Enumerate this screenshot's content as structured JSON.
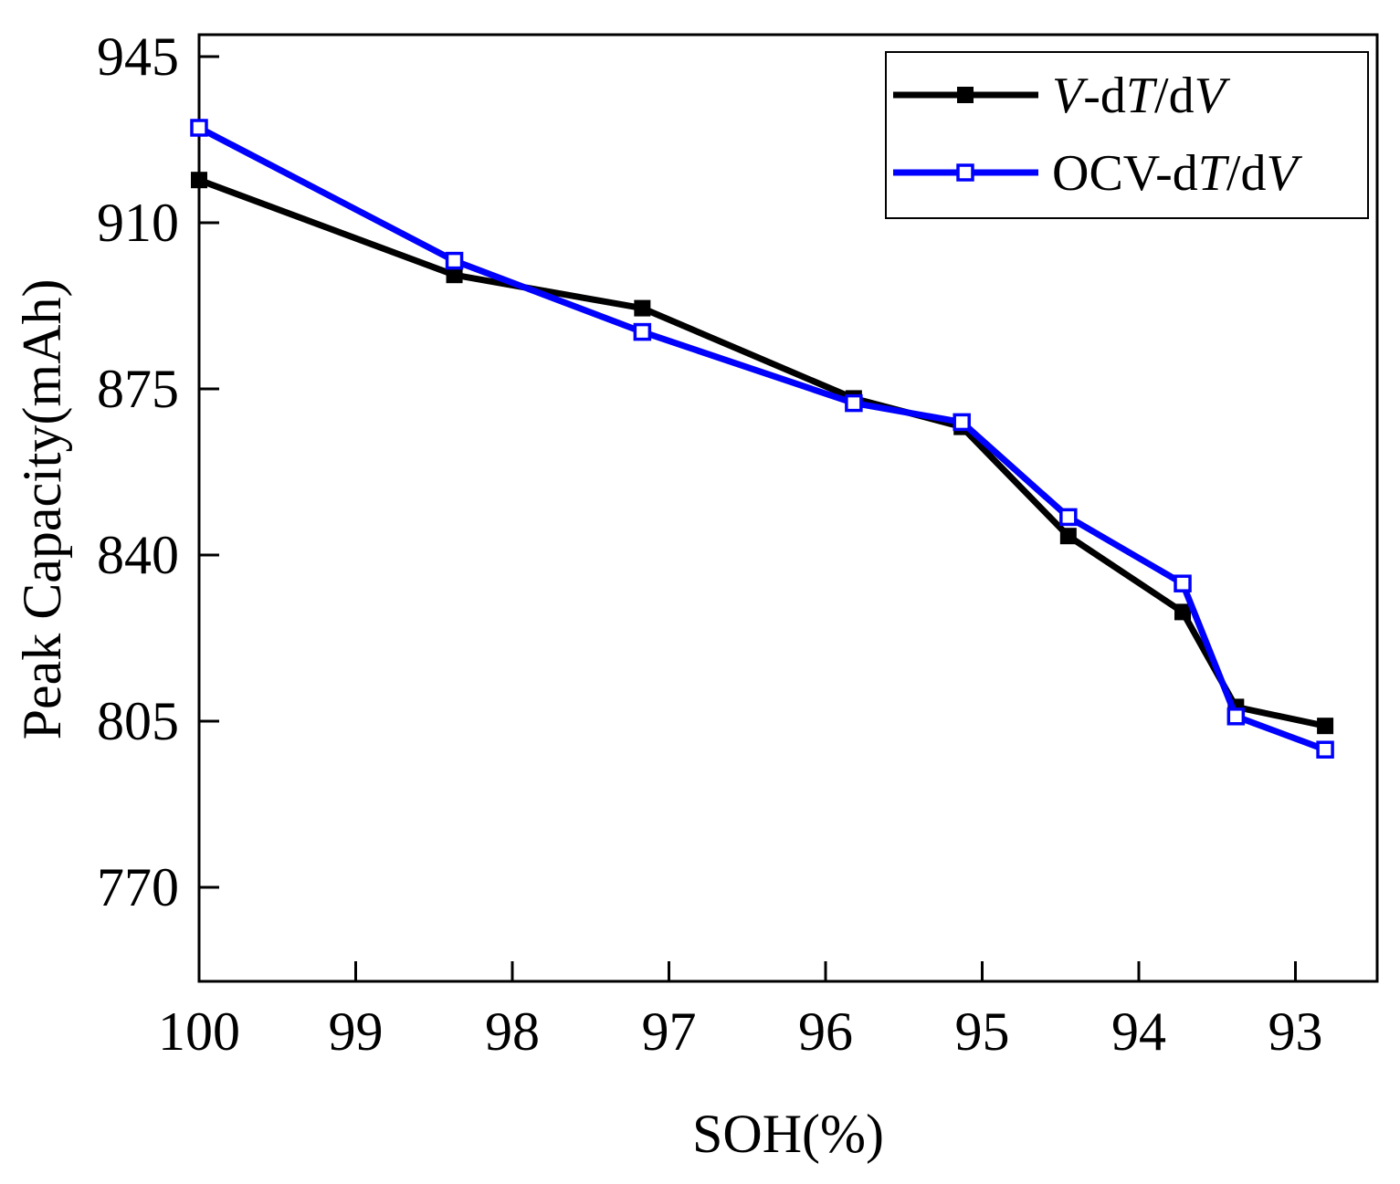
{
  "chart_data": {
    "type": "line",
    "title": "",
    "xlabel": "SOH(%)",
    "ylabel": "Peak Capacity(mAh)",
    "xlim": [
      100,
      92.5
    ],
    "ylim": [
      750,
      950
    ],
    "x_reversed": true,
    "grid": false,
    "legend_position": "top-right",
    "xticks": [
      100,
      99,
      98,
      97,
      96,
      95,
      94,
      93
    ],
    "yticks": [
      770,
      805,
      840,
      875,
      910,
      945
    ],
    "series": [
      {
        "name": "V-dT/dV",
        "legend_parts": [
          {
            "text": "V",
            "italic": true
          },
          {
            "text": "-d",
            "italic": false
          },
          {
            "text": "T",
            "italic": true
          },
          {
            "text": "/d",
            "italic": false
          },
          {
            "text": "V",
            "italic": true
          }
        ],
        "color": "#000000",
        "marker": "filled-square",
        "x": [
          100,
          98.37,
          97.17,
          95.82,
          95.13,
          94.45,
          93.72,
          93.38,
          92.81
        ],
        "y": [
          919,
          899,
          892,
          873,
          867,
          844,
          828,
          808,
          804
        ]
      },
      {
        "name": "OCV-dT/dV",
        "legend_parts": [
          {
            "text": "OCV-d",
            "italic": false
          },
          {
            "text": "T",
            "italic": true
          },
          {
            "text": "/d",
            "italic": false
          },
          {
            "text": "V",
            "italic": true
          }
        ],
        "color": "#0000ff",
        "marker": "open-square",
        "x": [
          100,
          98.37,
          97.17,
          95.82,
          95.13,
          94.45,
          93.72,
          93.38,
          92.81
        ],
        "y": [
          930,
          902,
          887,
          872,
          868,
          848,
          834,
          806,
          799
        ]
      }
    ]
  }
}
